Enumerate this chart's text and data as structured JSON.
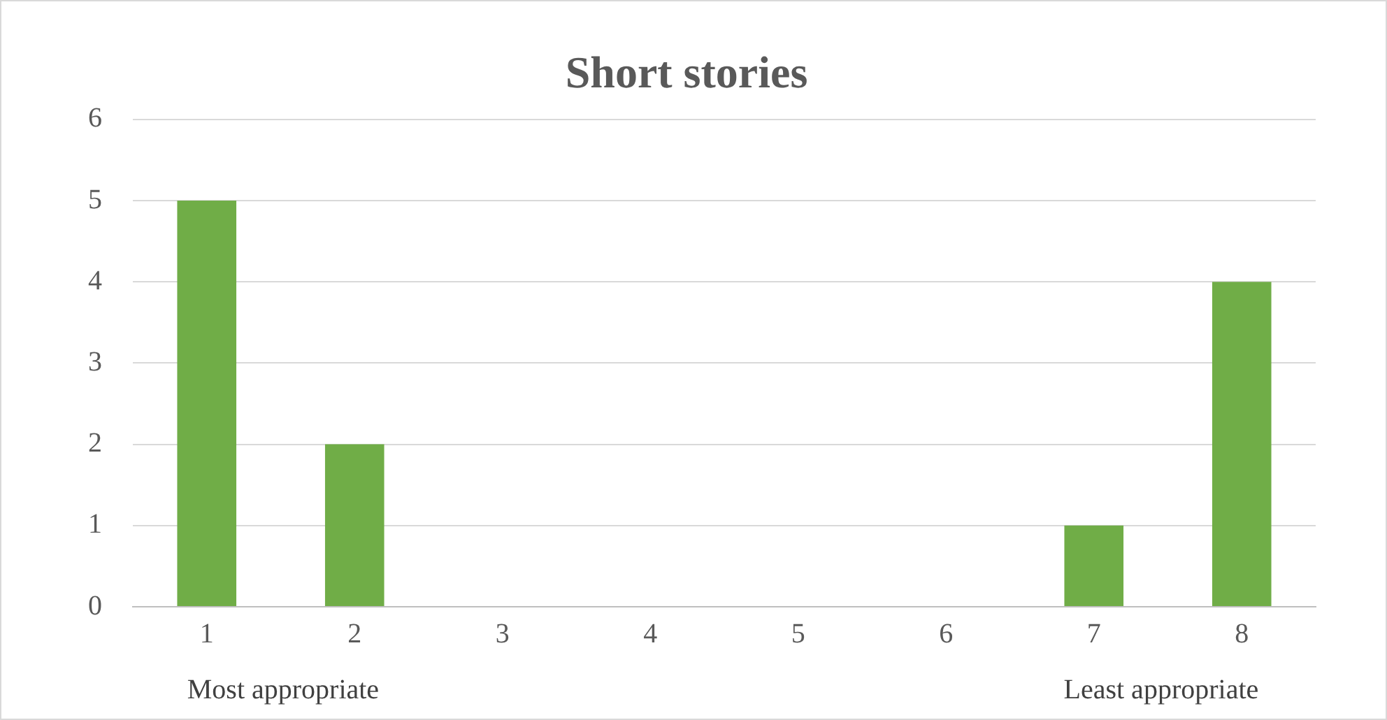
{
  "chart_data": {
    "type": "bar",
    "title": "Short stories",
    "categories": [
      "1",
      "2",
      "3",
      "4",
      "5",
      "6",
      "7",
      "8"
    ],
    "values": [
      5,
      2,
      0,
      0,
      0,
      0,
      1,
      4
    ],
    "color": "#70ad47",
    "ylim": [
      0,
      6
    ],
    "yticks": [
      0,
      1,
      2,
      3,
      4,
      5,
      6
    ],
    "grid": "y",
    "legend": false,
    "annotations": [
      "Most appropriate",
      "Least appropriate"
    ]
  }
}
